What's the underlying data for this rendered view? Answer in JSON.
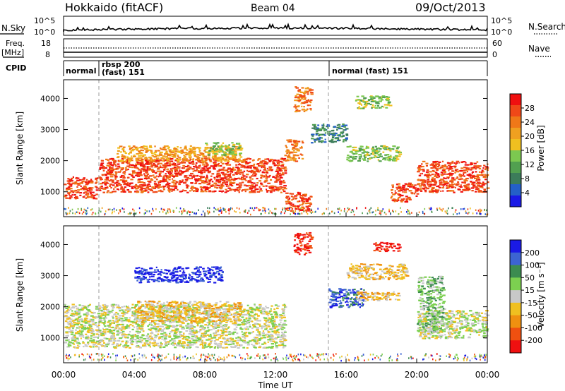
{
  "header": {
    "station": "Hokkaido (fitACF)",
    "beam": "Beam 04",
    "date": "09/Oct/2013"
  },
  "panels": {
    "nsky": {
      "left_label": "N.Sky",
      "right_label": "N.Search",
      "left_ticks": [
        "10^5",
        "10^0"
      ],
      "right_ticks": [
        "10^5",
        "10^0"
      ]
    },
    "freq": {
      "left_label_1": "Freq.",
      "left_label_2": "[MHz]",
      "left_ticks": [
        "18",
        "8"
      ],
      "right_ticks": [
        "60",
        "0"
      ],
      "right_label": "Nave"
    },
    "cpid": {
      "label": "CPID",
      "segments": [
        {
          "start_hour": 0.0,
          "line1": "",
          "line2": "normal"
        },
        {
          "start_hour": 2.0,
          "line1": "rbsp 200",
          "line2": "(fast) 151"
        },
        {
          "start_hour": 15.0,
          "line1": "",
          "line2": "normal (fast) 151"
        }
      ]
    },
    "power": {
      "colorbar_label": "Power [dB]",
      "colorbar_ticks": [
        "28",
        "24",
        "20",
        "16",
        "12",
        "8",
        "4"
      ],
      "colors": [
        "#1a1ae6",
        "#2460c8",
        "#3c7c5a",
        "#52a050",
        "#7cc850",
        "#f0c020",
        "#f0a020",
        "#f07818",
        "#f04818",
        "#f01010"
      ]
    },
    "velocity": {
      "colorbar_label": "Velocity [m s⁻¹]",
      "colorbar_ticks": [
        "200",
        "100",
        "50",
        "15",
        "-15",
        "-50",
        "-100",
        "-200"
      ],
      "colors": [
        "#1a1ae6",
        "#3c64d2",
        "#3c8c50",
        "#7cd050",
        "#c8c8c8",
        "#f0c020",
        "#f09010",
        "#f05010",
        "#f01010"
      ]
    }
  },
  "axes": {
    "ylabel": "Slant Range [km]",
    "xlabel": "Time UT",
    "y_ticks": [
      "4000",
      "3000",
      "2000",
      "1000"
    ],
    "x_ticks": [
      "00:00",
      "04:00",
      "08:00",
      "12:00",
      "16:00",
      "20:00",
      "00:00"
    ]
  },
  "chart_data": [
    {
      "type": "heatmap",
      "title": "Power",
      "xlabel": "Time UT",
      "ylabel": "Slant Range [km]",
      "xlim_hours": [
        0,
        24
      ],
      "ylim_km": [
        200,
        4600
      ],
      "colorbar": {
        "label": "Power [dB]",
        "range": [
          0,
          30
        ]
      },
      "regions": [
        {
          "t0": 0.0,
          "t1": 2.0,
          "r0": 800,
          "r1": 1500,
          "value": 28
        },
        {
          "t0": 2.0,
          "t1": 12.5,
          "r0": 1000,
          "r1": 2100,
          "value": 27
        },
        {
          "t0": 3.0,
          "t1": 10.0,
          "r0": 2000,
          "r1": 2500,
          "value": 20
        },
        {
          "t0": 8.0,
          "t1": 10.0,
          "r0": 2200,
          "r1": 2600,
          "value": 14
        },
        {
          "t0": 12.5,
          "t1": 13.5,
          "r0": 2000,
          "r1": 2700,
          "value": 24
        },
        {
          "t0": 13.0,
          "t1": 14.0,
          "r0": 3600,
          "r1": 4400,
          "value": 22
        },
        {
          "t0": 14.0,
          "t1": 16.0,
          "r0": 2600,
          "r1": 3200,
          "value": 6
        },
        {
          "t0": 16.0,
          "t1": 19.0,
          "r0": 2000,
          "r1": 2500,
          "value": 14
        },
        {
          "t0": 18.5,
          "t1": 20.0,
          "r0": 700,
          "r1": 1300,
          "value": 26
        },
        {
          "t0": 20.0,
          "t1": 24.0,
          "r0": 1000,
          "r1": 2000,
          "value": 28
        },
        {
          "t0": 16.5,
          "t1": 18.5,
          "r0": 3700,
          "r1": 4100,
          "value": 13
        },
        {
          "t0": 12.5,
          "t1": 14.0,
          "r0": 400,
          "r1": 1000,
          "value": 27
        }
      ]
    },
    {
      "type": "heatmap",
      "title": "Velocity",
      "xlabel": "Time UT",
      "ylabel": "Slant Range [km]",
      "xlim_hours": [
        0,
        24
      ],
      "ylim_km": [
        200,
        4600
      ],
      "colorbar": {
        "label": "Velocity [m s⁻¹]",
        "range": [
          -200,
          200
        ]
      },
      "regions": [
        {
          "t0": 0.0,
          "t1": 12.5,
          "r0": 700,
          "r1": 2100,
          "value": 0
        },
        {
          "t0": 4.0,
          "t1": 10.0,
          "r0": 1500,
          "r1": 2200,
          "value": -40
        },
        {
          "t0": 4.0,
          "t1": 9.0,
          "r0": 2800,
          "r1": 3300,
          "value": 200
        },
        {
          "t0": 13.0,
          "t1": 14.0,
          "r0": 3700,
          "r1": 4400,
          "value": -200
        },
        {
          "t0": 15.0,
          "t1": 17.0,
          "r0": 2000,
          "r1": 2600,
          "value": 150
        },
        {
          "t0": 16.5,
          "t1": 19.0,
          "r0": 2200,
          "r1": 2500,
          "value": -60
        },
        {
          "t0": 16.0,
          "t1": 19.5,
          "r0": 2900,
          "r1": 3400,
          "value": -60
        },
        {
          "t0": 17.5,
          "t1": 19.0,
          "r0": 3800,
          "r1": 4100,
          "value": -200
        },
        {
          "t0": 20.0,
          "t1": 24.0,
          "r0": 1000,
          "r1": 1900,
          "value": 0
        },
        {
          "t0": 20.0,
          "t1": 21.5,
          "r0": 1200,
          "r1": 3000,
          "value": 40
        }
      ]
    }
  ]
}
